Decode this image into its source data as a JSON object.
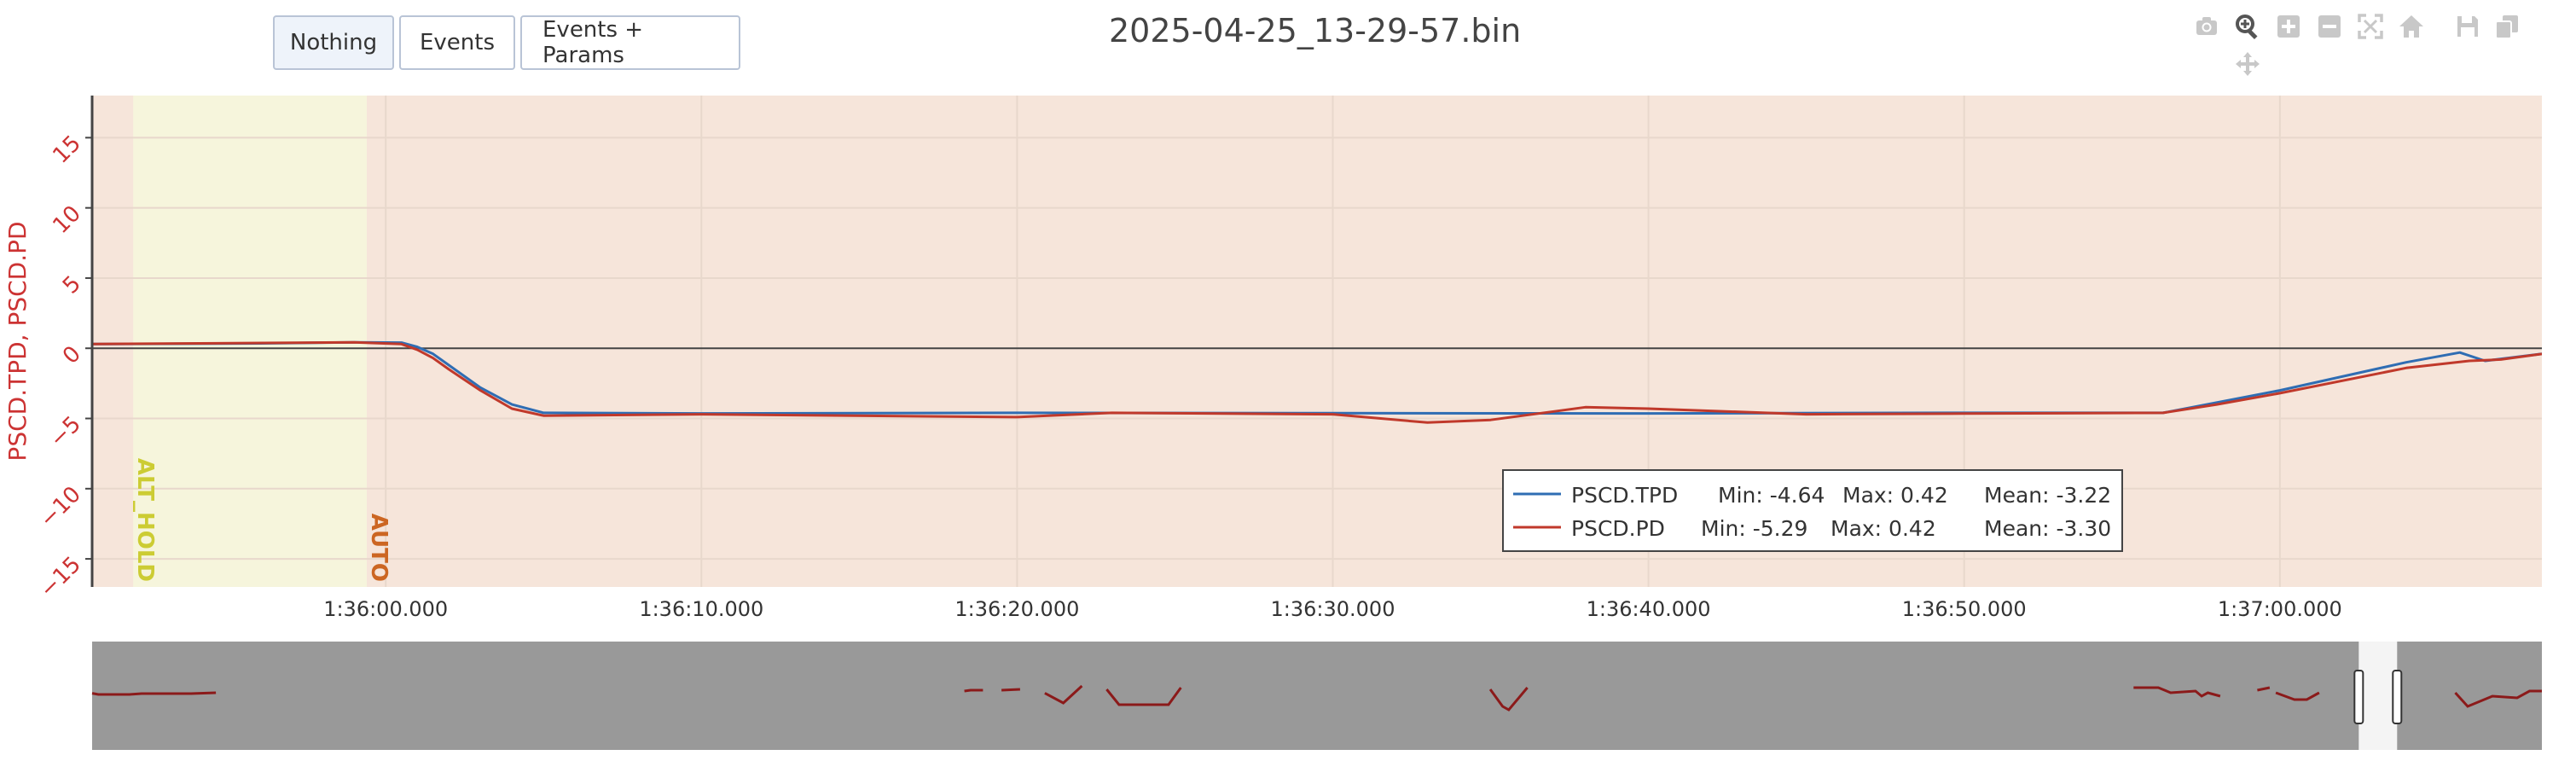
{
  "buttons": {
    "nothing": "Nothing",
    "events": "Events",
    "events_params": "Events + Params"
  },
  "title": "2025-04-25_13-29-57.bin",
  "modebar": {
    "icons": [
      "camera-icon",
      "zoom-icon",
      "zoom-in-icon",
      "zoom-out-icon",
      "autoscale-icon",
      "home-icon",
      "save-icon",
      "copy-icon",
      "pan-icon"
    ]
  },
  "colors": {
    "tpd": "#2f6db3",
    "pd": "#c0392b",
    "bg_mode": "#f6e5da",
    "alt_hold_bg": "#f6f5dc",
    "alt_hold_label": "#cccc33",
    "auto_label": "#cc6622",
    "rangeslider_bg": "#999999"
  },
  "chart_data": {
    "type": "line",
    "ylabel": "PSCD.TPD, PSCD.PD",
    "ylim": [
      -17,
      18
    ],
    "yticks": [
      "15",
      "10",
      "5",
      "0",
      "−5",
      "−10",
      "−15"
    ],
    "ytick_values": [
      15,
      10,
      5,
      0,
      -5,
      -10,
      -15
    ],
    "xlim": [
      -9.3,
      68.3
    ],
    "x_unit": "seconds after 1:36:00.000",
    "xticks": [
      "1:36:00.000",
      "1:36:10.000",
      "1:36:20.000",
      "1:36:30.000",
      "1:36:40.000",
      "1:36:50.000",
      "1:37:00.000"
    ],
    "xtick_values": [
      0,
      10,
      20,
      30,
      40,
      50,
      60
    ],
    "grid": true,
    "mode_regions": [
      {
        "label": "ALT_HOLD",
        "start": -8.0,
        "end": -0.6
      },
      {
        "label": "AUTO",
        "start": -0.6,
        "end": 68.3
      }
    ],
    "series": [
      {
        "name": "PSCD.TPD",
        "x": [
          -9.3,
          -4,
          -1,
          0.5,
          1.0,
          1.5,
          2,
          3,
          4,
          5,
          10,
          20,
          30,
          40,
          50,
          56.3,
          60,
          64,
          65.7,
          66.5,
          68.3
        ],
        "y": [
          0.3,
          0.35,
          0.42,
          0.4,
          0.1,
          -0.4,
          -1.2,
          -2.8,
          -4.0,
          -4.6,
          -4.64,
          -4.6,
          -4.62,
          -4.64,
          -4.6,
          -4.6,
          -3.0,
          -1.0,
          -0.3,
          -0.9,
          -0.4
        ]
      },
      {
        "name": "PSCD.PD",
        "x": [
          -9.3,
          -1,
          0.5,
          1,
          1.5,
          2,
          3,
          4,
          5,
          10,
          20,
          23,
          30,
          33,
          35,
          37,
          38,
          40,
          45,
          50,
          56.3,
          58,
          60,
          64,
          66,
          67,
          68.3
        ],
        "y": [
          0.3,
          0.42,
          0.3,
          -0.1,
          -0.7,
          -1.5,
          -3.0,
          -4.3,
          -4.8,
          -4.7,
          -4.9,
          -4.6,
          -4.7,
          -5.29,
          -5.1,
          -4.5,
          -4.2,
          -4.3,
          -4.7,
          -4.65,
          -4.6,
          -4.0,
          -3.2,
          -1.4,
          -0.9,
          -0.8,
          -0.4
        ]
      }
    ],
    "legend": {
      "placement": "lower-right",
      "entries": [
        {
          "name": "PSCD.TPD",
          "min_text": "Min: -4.64",
          "max_text": "Max: 0.42",
          "mean_text": "Mean: -3.22"
        },
        {
          "name": "PSCD.PD",
          "min_text": "Min: -5.29",
          "max_text": "Max: 0.42",
          "mean_text": "Mean: -3.30"
        }
      ]
    },
    "rangeslider": {
      "segments": [
        [
          [
            0,
            0.93
          ],
          [
            0.5,
            1.0
          ],
          [
            3,
            1.0
          ],
          [
            4,
            0.95
          ],
          [
            8,
            0.95
          ],
          [
            10,
            0.9
          ]
        ],
        [
          [
            70.5,
            0.8
          ],
          [
            71,
            0.75
          ],
          [
            72,
            0.75
          ]
        ],
        [
          [
            73.5,
            0.75
          ],
          [
            75,
            0.7
          ]
        ],
        [
          [
            77,
            0.92
          ],
          [
            78.5,
            1.5
          ],
          [
            80,
            0.5
          ]
        ],
        [
          [
            82,
            0.7
          ],
          [
            83,
            1.6
          ],
          [
            87,
            1.6
          ],
          [
            88,
            0.6
          ]
        ],
        [
          [
            113,
            0.7
          ],
          [
            114,
            1.7
          ],
          [
            114.5,
            1.9
          ],
          [
            116,
            0.6
          ]
        ],
        [
          [
            165,
            0.6
          ],
          [
            167,
            0.6
          ],
          [
            168,
            0.9
          ],
          [
            170,
            0.8
          ],
          [
            170.5,
            1.1
          ],
          [
            171,
            0.9
          ],
          [
            172,
            1.1
          ]
        ],
        [
          [
            175,
            0.75
          ],
          [
            176,
            0.6
          ]
        ],
        [
          [
            176.5,
            0.9
          ],
          [
            178,
            1.3
          ],
          [
            179,
            1.3
          ],
          [
            180,
            0.9
          ]
        ],
        [
          [
            191,
            0.9
          ],
          [
            192,
            1.7
          ],
          [
            194,
            1.1
          ],
          [
            196,
            1.2
          ],
          [
            197,
            0.8
          ],
          [
            198,
            0.8
          ]
        ]
      ],
      "xlim": [
        0,
        198
      ],
      "window": [
        183.2,
        186.3
      ]
    }
  }
}
